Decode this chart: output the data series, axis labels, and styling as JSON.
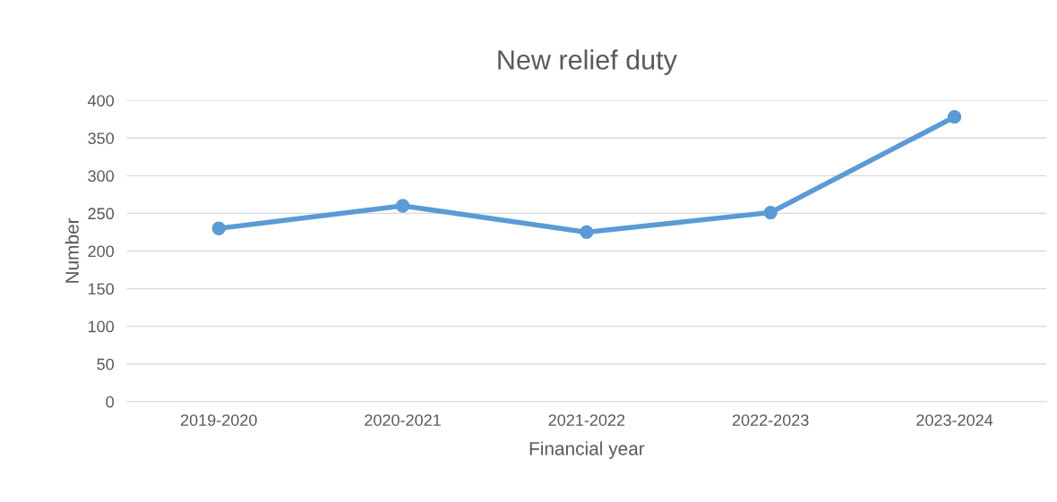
{
  "chart_data": {
    "type": "line",
    "title": "New relief duty",
    "xlabel": "Financial year",
    "ylabel": "Number",
    "categories": [
      "2019-2020",
      "2020-2021",
      "2021-2022",
      "2022-2023",
      "2023-2024"
    ],
    "series": [
      {
        "color": "#5b9bd5",
        "values": [
          230,
          260,
          225,
          251,
          378
        ]
      }
    ],
    "ylim": [
      0,
      400
    ],
    "yticks": [
      0,
      50,
      100,
      150,
      200,
      250,
      300,
      350,
      400
    ],
    "grid": "y",
    "legend": false,
    "marker": "circle",
    "line_style": "solid"
  }
}
